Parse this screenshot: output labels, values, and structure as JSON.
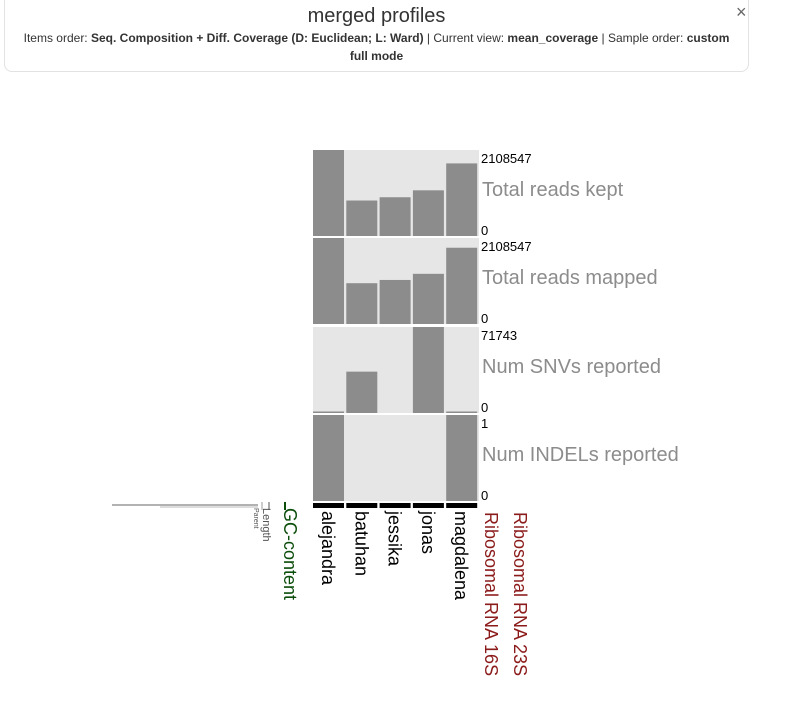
{
  "header": {
    "title": "merged profiles",
    "items_order_label": "Items order:",
    "items_order_value": "Seq. Composition + Diff. Coverage (D: Euclidean; L: Ward)",
    "current_view_label": "Current view:",
    "current_view_value": "mean_coverage",
    "sample_order_label": "Sample order:",
    "sample_order_value": "custom",
    "mode_value": "full mode",
    "separator": "|",
    "close_glyph": "×"
  },
  "chart_data": {
    "type": "bar",
    "categories": [
      "alejandra",
      "batuhan",
      "jessika",
      "jonas",
      "magdalena"
    ],
    "series": [
      {
        "name": "Total reads kept",
        "max_label": "2108547",
        "min_label": "0",
        "ylim": [
          0,
          2108547
        ],
        "values": [
          2108547,
          870000,
          950000,
          1120000,
          1780000
        ]
      },
      {
        "name": "Total reads mapped",
        "max_label": "2108547",
        "min_label": "0",
        "ylim": [
          0,
          2108547
        ],
        "values": [
          2108547,
          1000000,
          1080000,
          1230000,
          1870000
        ]
      },
      {
        "name": "Num SNVs reported",
        "max_label": "71743",
        "min_label": "0",
        "ylim": [
          0,
          71743
        ],
        "values": [
          1200,
          34500,
          0,
          71743,
          900
        ]
      },
      {
        "name": "Num INDELs reported",
        "max_label": "1",
        "min_label": "0",
        "ylim": [
          0,
          1
        ],
        "values": [
          1,
          0,
          0,
          0,
          1
        ]
      }
    ],
    "layer_labels": {
      "gc": "GC-content",
      "length": "Length",
      "parent": "Parent",
      "rrna16": "Ribosomal RNA 16S",
      "rrna23": "Ribosomal RNA 23S"
    },
    "colors": {
      "bar": "#8c8c8c",
      "panel_bg": "#e6e6e6",
      "gc": "#0b4d0b",
      "rrna": "#8b1a1a"
    }
  }
}
